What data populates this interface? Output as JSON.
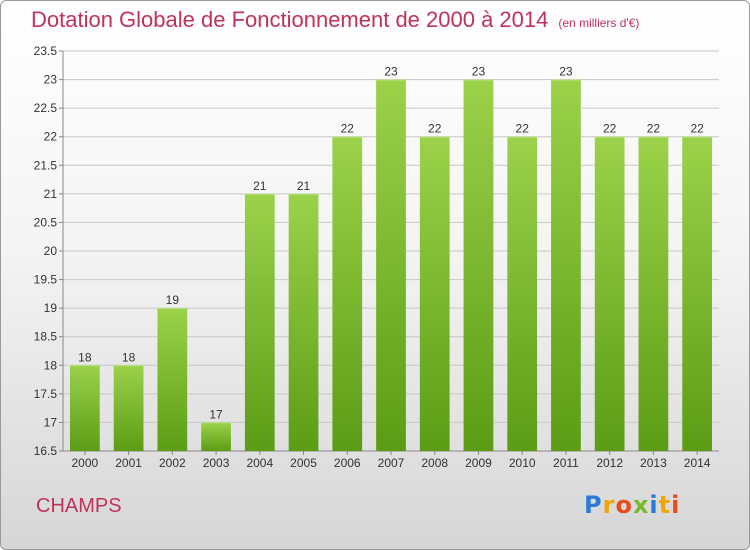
{
  "header": {
    "title": "Dotation Globale de Fonctionnement de 2000 à 2014",
    "subtitle": "(en milliers d'€)"
  },
  "footer": {
    "commune": "CHAMPS",
    "logo": {
      "text": "Proxiti",
      "letters": [
        {
          "char": "P",
          "color": "#2b7ad8"
        },
        {
          "char": "r",
          "color": "#f0a500"
        },
        {
          "char": "o",
          "color": "#e84c1c"
        },
        {
          "char": "x",
          "color": "#7bb82c"
        },
        {
          "char": "i",
          "color": "#2b7ad8"
        },
        {
          "char": "t",
          "color": "#f0a500"
        },
        {
          "char": "i",
          "color": "#e84c1c"
        }
      ]
    }
  },
  "colors": {
    "title": "#c0325b",
    "bar_top": "#9bd24a",
    "bar_bottom": "#5c9c15",
    "grid": "#c8c8c8",
    "axis_text": "#333333"
  },
  "chart_data": {
    "type": "bar",
    "categories": [
      "2000",
      "2001",
      "2002",
      "2003",
      "2004",
      "2005",
      "2006",
      "2007",
      "2008",
      "2009",
      "2010",
      "2011",
      "2012",
      "2013",
      "2014"
    ],
    "values": [
      18,
      18,
      19,
      17,
      21,
      21,
      22,
      23,
      22,
      23,
      22,
      23,
      22,
      22,
      22
    ],
    "value_labels": [
      "18",
      "18",
      "19",
      "17",
      "21",
      "21",
      "22",
      "23",
      "22",
      "23",
      "22",
      "23",
      "22",
      "22",
      "22"
    ],
    "ylim": [
      16.5,
      23.5
    ],
    "yticks": [
      16.5,
      17,
      17.5,
      18,
      18.5,
      19,
      19.5,
      20,
      20.5,
      21,
      21.5,
      22,
      22.5,
      23,
      23.5
    ],
    "ytick_labels": [
      "16.5",
      "17",
      "17.5",
      "18",
      "18.5",
      "19",
      "19.5",
      "20",
      "20.5",
      "21",
      "21.5",
      "22",
      "22.5",
      "23",
      "23.5"
    ],
    "grid": true,
    "legend": "none"
  }
}
